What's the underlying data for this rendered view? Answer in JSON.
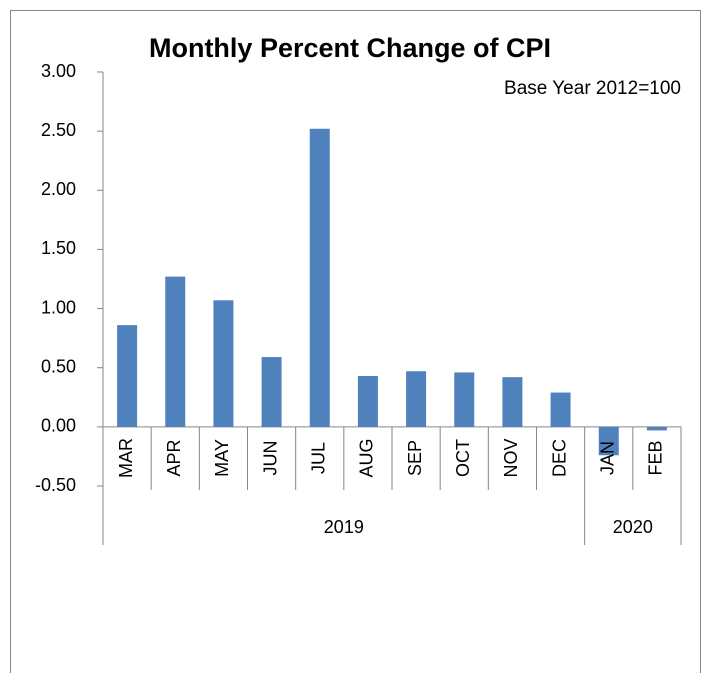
{
  "chart_data": {
    "type": "bar",
    "title": "Monthly Percent Change of CPI",
    "subtitle": "Base Year 2012=100",
    "groups": [
      {
        "label": "2019",
        "categories": [
          "MAR",
          "APR",
          "MAY",
          "JUN",
          "JUL",
          "AUG",
          "SEP",
          "OCT",
          "NOV",
          "DEC"
        ]
      },
      {
        "label": "2020",
        "categories": [
          "JAN",
          "FEB"
        ]
      }
    ],
    "values": [
      0.86,
      1.27,
      1.07,
      0.59,
      2.52,
      0.43,
      0.47,
      0.46,
      0.42,
      0.29,
      -0.24,
      -0.03
    ],
    "color": "#4f81bd",
    "ylim": [
      -0.5,
      3
    ],
    "yticks": [
      {
        "value": -0.5,
        "label": "-0.50"
      },
      {
        "value": 0,
        "label": "0.00"
      },
      {
        "value": 0.5,
        "label": "0.50"
      },
      {
        "value": 1,
        "label": "1.00"
      },
      {
        "value": 1.5,
        "label": "1.50"
      },
      {
        "value": 2,
        "label": "2.00"
      },
      {
        "value": 2.5,
        "label": "2.50"
      },
      {
        "value": 3,
        "label": "3.00"
      }
    ],
    "grid": false
  }
}
